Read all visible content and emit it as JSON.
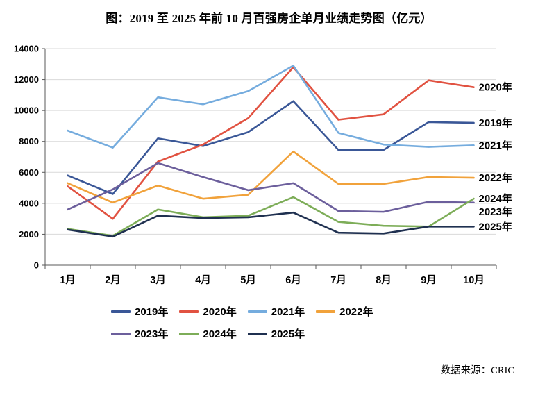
{
  "chart_data": {
    "type": "line",
    "title": "图：2019 至 2025 年前 10 月百强房企单月业绩走势图（亿元）",
    "source": "数据来源：CRIC",
    "x_labels": [
      "1月",
      "2月",
      "3月",
      "4月",
      "5月",
      "6月",
      "7月",
      "8月",
      "9月",
      "10月"
    ],
    "y_ticks": [
      0,
      2000,
      4000,
      6000,
      8000,
      10000,
      12000,
      14000
    ],
    "ylim": [
      0,
      14000
    ],
    "grid": true,
    "legend_position": "bottom",
    "grid_color": "#d9d9d9",
    "axis_color": "#595959",
    "series": [
      {
        "name": "2019年",
        "color": "#3A5797",
        "values": [
          5800,
          4600,
          8200,
          7700,
          8600,
          10600,
          7450,
          7450,
          9250,
          9200
        ]
      },
      {
        "name": "2020年",
        "color": "#E15241",
        "values": [
          5100,
          3000,
          6700,
          7800,
          9500,
          12800,
          9400,
          9750,
          11950,
          11500
        ]
      },
      {
        "name": "2021年",
        "color": "#75ACDE",
        "values": [
          8700,
          7600,
          10850,
          10400,
          11250,
          12900,
          8550,
          7800,
          7650,
          7750
        ]
      },
      {
        "name": "2022年",
        "color": "#F1A23B",
        "values": [
          5300,
          4050,
          5150,
          4300,
          4550,
          7350,
          5250,
          5250,
          5700,
          5650
        ]
      },
      {
        "name": "2023年",
        "color": "#6C5F9C",
        "values": [
          3600,
          4900,
          6600,
          5700,
          4850,
          5300,
          3500,
          3450,
          4100,
          4050
        ]
      },
      {
        "name": "2024年",
        "color": "#7DAD58",
        "values": [
          2350,
          1900,
          3600,
          3100,
          3200,
          4400,
          2800,
          2550,
          2500,
          4300
        ]
      },
      {
        "name": "2025年",
        "color": "#1F3050",
        "values": [
          2300,
          1850,
          3200,
          3050,
          3100,
          3400,
          2100,
          2050,
          2500,
          2500
        ]
      }
    ]
  }
}
